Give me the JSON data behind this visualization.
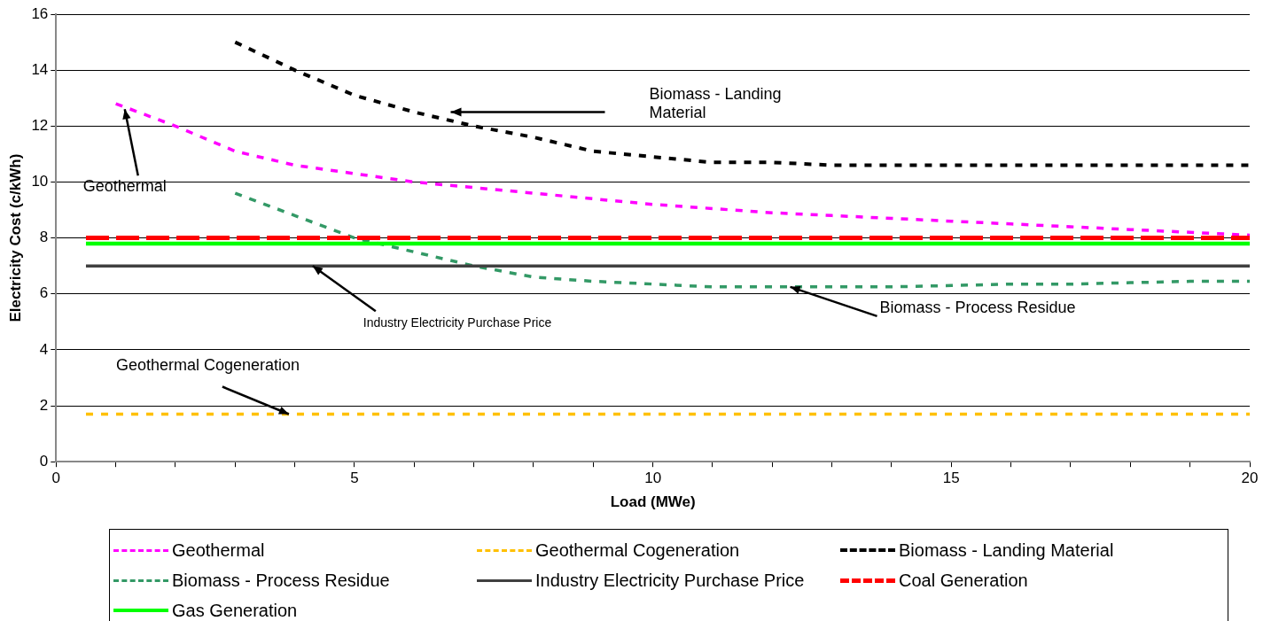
{
  "chart_data": {
    "type": "line",
    "xlabel": "Load (MWe)",
    "ylabel": "Electricity Cost (c/kWh)",
    "xlim": [
      0,
      20
    ],
    "ylim": [
      0,
      16
    ],
    "xticks": [
      0,
      {
        "value": 1,
        "label": null
      },
      {
        "value": 2,
        "label": null
      },
      {
        "value": 3,
        "label": null
      },
      {
        "value": 4,
        "label": null
      },
      5,
      {
        "value": 6,
        "label": null
      },
      {
        "value": 7,
        "label": null
      },
      {
        "value": 8,
        "label": null
      },
      {
        "value": 9,
        "label": null
      },
      10,
      {
        "value": 11,
        "label": null
      },
      {
        "value": 12,
        "label": null
      },
      {
        "value": 13,
        "label": null
      },
      {
        "value": 14,
        "label": null
      },
      15,
      {
        "value": 16,
        "label": null
      },
      {
        "value": 17,
        "label": null
      },
      {
        "value": 18,
        "label": null
      },
      {
        "value": 19,
        "label": null
      },
      20
    ],
    "yticks": [
      0,
      2,
      4,
      6,
      8,
      10,
      12,
      14,
      16
    ],
    "grid": "y",
    "legend": "bottom",
    "marker": "none",
    "series": [
      {
        "name": "Geothermal",
        "color": "#ff00ff",
        "line_style": "dashed",
        "x": [
          1,
          2,
          3,
          4,
          5,
          6,
          7,
          8,
          9,
          10,
          11,
          12,
          13,
          14,
          15,
          16,
          17,
          18,
          19,
          20
        ],
        "values": [
          12.8,
          12.0,
          11.1,
          10.6,
          10.3,
          10.0,
          9.8,
          9.6,
          9.4,
          9.2,
          9.05,
          8.9,
          8.8,
          8.7,
          8.6,
          8.5,
          8.4,
          8.3,
          8.2,
          8.1
        ]
      },
      {
        "name": "Geothermal Cogeneration",
        "color": "#ffc000",
        "line_style": "dashed",
        "x": [
          0.5,
          20
        ],
        "values": [
          1.7,
          1.7
        ]
      },
      {
        "name": "Biomass - Landing Material",
        "color": "#000000",
        "line_style": "dashed",
        "x": [
          3,
          4,
          5,
          6,
          7,
          8,
          9,
          10,
          11,
          12,
          13,
          14,
          15,
          16,
          17,
          18,
          19,
          20
        ],
        "values": [
          15.0,
          14.0,
          13.1,
          12.5,
          12.0,
          11.6,
          11.1,
          10.9,
          10.7,
          10.7,
          10.6,
          10.6,
          10.6,
          10.6,
          10.6,
          10.6,
          10.6,
          10.6
        ]
      },
      {
        "name": "Biomass - Process Residue",
        "color": "#339966",
        "line_style": "dashed",
        "x": [
          3,
          4,
          5,
          6,
          7,
          8,
          9,
          10,
          11,
          12,
          13,
          14,
          15,
          16,
          17,
          18,
          19,
          20
        ],
        "values": [
          9.6,
          8.8,
          8.0,
          7.5,
          7.0,
          6.6,
          6.45,
          6.35,
          6.25,
          6.25,
          6.25,
          6.25,
          6.3,
          6.35,
          6.35,
          6.4,
          6.45,
          6.45
        ]
      },
      {
        "name": "Industry Electricity Purchase Price",
        "color": "#404040",
        "line_style": "solid",
        "x": [
          0.5,
          20
        ],
        "values": [
          7.0,
          7.0
        ]
      },
      {
        "name": "Coal Generation",
        "color": "#ff0000",
        "line_style": "dashed",
        "x": [
          0.5,
          20
        ],
        "values": [
          8.0,
          8.0
        ]
      },
      {
        "name": "Gas Generation",
        "color": "#00ff00",
        "line_style": "solid",
        "x": [
          0.5,
          20
        ],
        "values": [
          7.8,
          7.8
        ]
      }
    ],
    "annotations": [
      {
        "text": "Geothermal",
        "x": 1.15,
        "y": 12.6
      },
      "Biomass - Landing Material",
      {
        "text": "Industry Electricity Purchase Price",
        "x": 4.3,
        "y": 7.0
      },
      {
        "text": "Biomass - Process Residue",
        "x": 12.3,
        "y": 6.25
      },
      {
        "text": "Geothermal Cogeneration",
        "x": 3.9,
        "y": 1.7
      }
    ]
  }
}
